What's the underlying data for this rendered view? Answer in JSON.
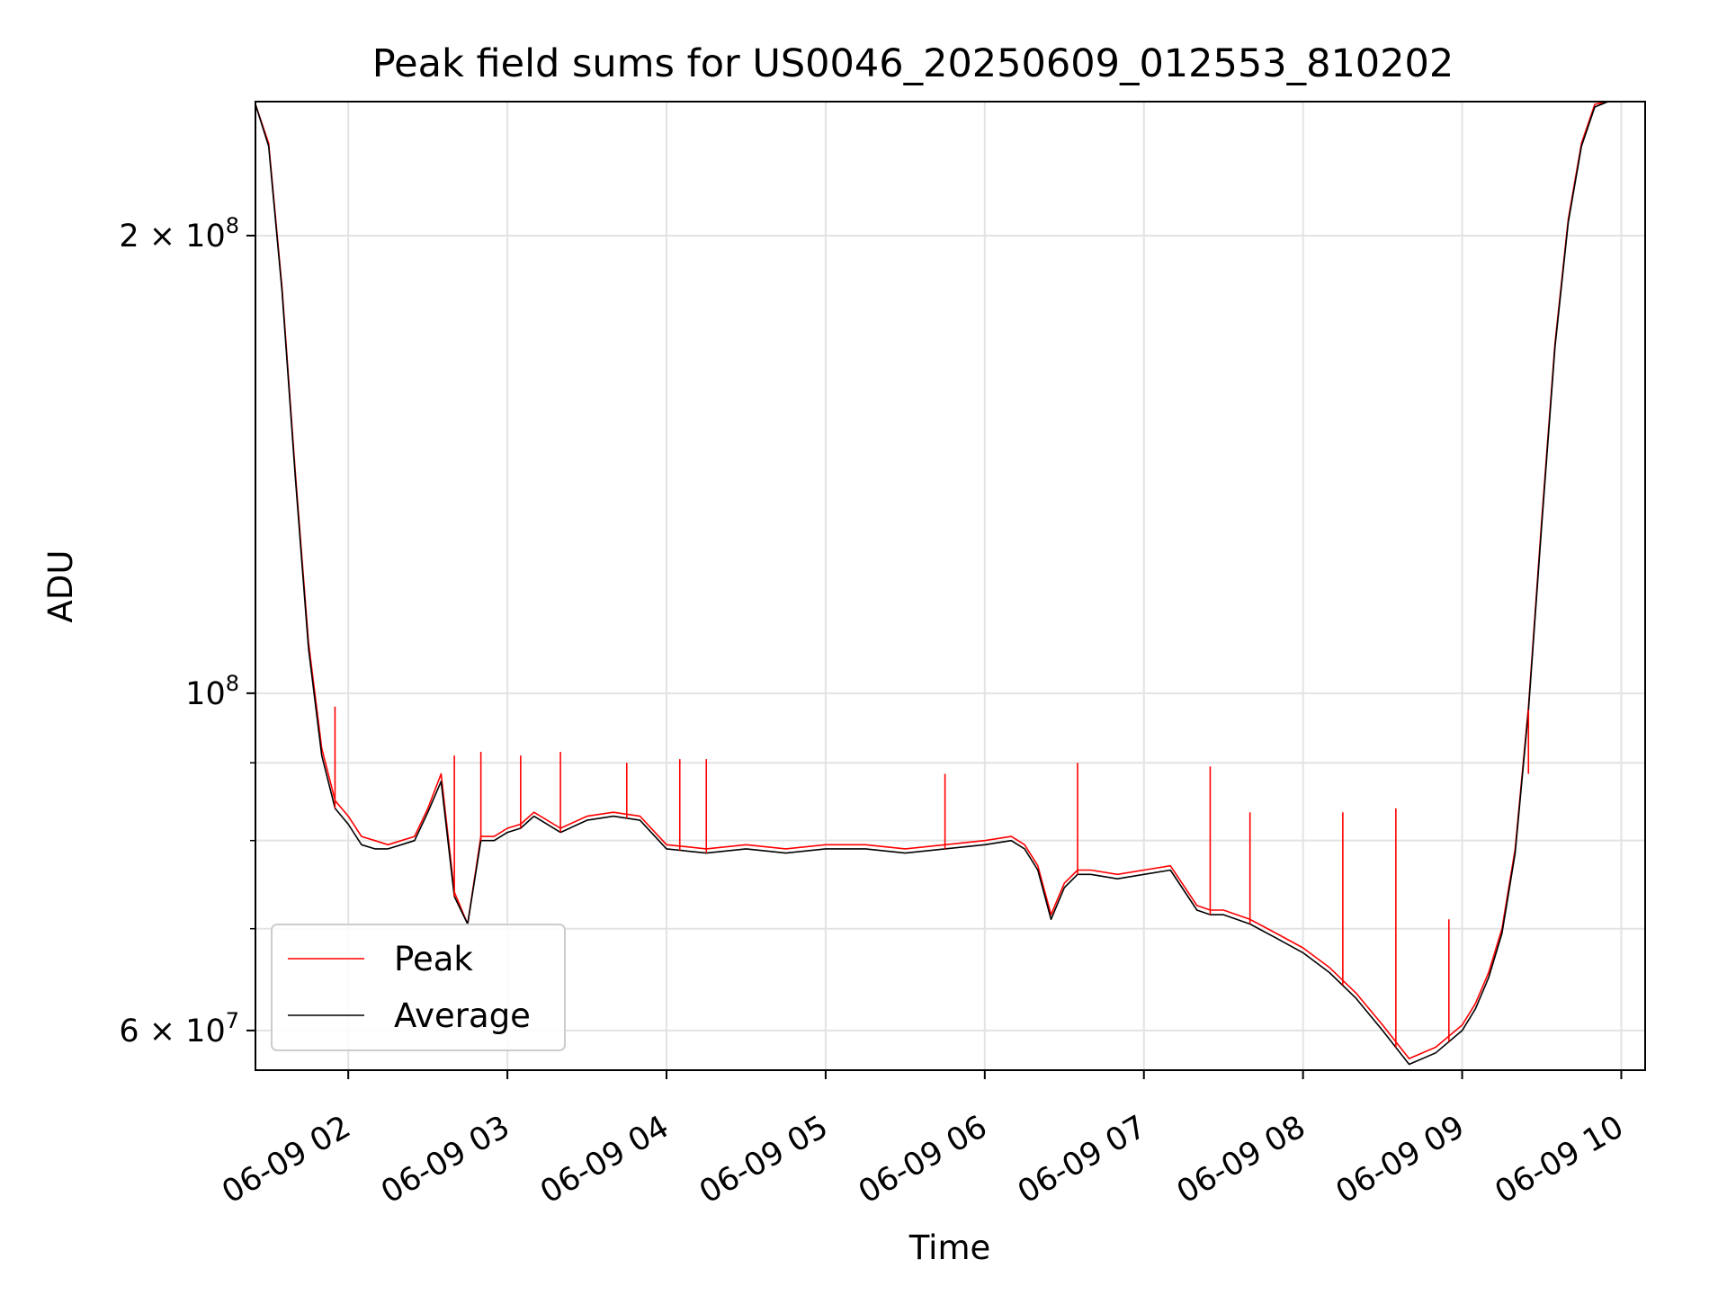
{
  "chart_data": {
    "type": "line",
    "title": "Peak field sums for US0046_20250609_012553_810202",
    "xlabel": "Time",
    "ylabel": "ADU",
    "yscale": "log",
    "ylim": [
      56500000,
      245000000
    ],
    "xlim": [
      "06-09 01:25",
      "06-09 10:09"
    ],
    "grid": true,
    "legend_position": "lower-left",
    "x_ticks": [
      "06-09 02",
      "06-09 03",
      "06-09 04",
      "06-09 05",
      "06-09 06",
      "06-09 07",
      "06-09 08",
      "06-09 09",
      "06-09 10"
    ],
    "y_ticks": [
      {
        "label": "2 × 10⁸",
        "mantissa": "2 × 10",
        "exponent": "8",
        "value": 200000000
      },
      {
        "label": "10⁸",
        "mantissa": "10",
        "exponent": "8",
        "value": 100000000
      },
      {
        "label": "6 × 10⁷",
        "mantissa": "6 × 10",
        "exponent": "7",
        "value": 60000000
      }
    ],
    "y_minor_ticks": [
      70000000,
      80000000,
      90000000
    ],
    "x": [
      "06-09 01:25",
      "06-09 01:30",
      "06-09 01:35",
      "06-09 01:40",
      "06-09 01:45",
      "06-09 01:50",
      "06-09 01:55",
      "06-09 02:00",
      "06-09 02:05",
      "06-09 02:10",
      "06-09 02:15",
      "06-09 02:20",
      "06-09 02:25",
      "06-09 02:30",
      "06-09 02:35",
      "06-09 02:40",
      "06-09 02:45",
      "06-09 02:50",
      "06-09 02:55",
      "06-09 03:00",
      "06-09 03:05",
      "06-09 03:10",
      "06-09 03:20",
      "06-09 03:30",
      "06-09 03:40",
      "06-09 03:50",
      "06-09 04:00",
      "06-09 04:15",
      "06-09 04:30",
      "06-09 04:45",
      "06-09 05:00",
      "06-09 05:15",
      "06-09 05:30",
      "06-09 05:45",
      "06-09 06:00",
      "06-09 06:10",
      "06-09 06:15",
      "06-09 06:20",
      "06-09 06:25",
      "06-09 06:30",
      "06-09 06:35",
      "06-09 06:40",
      "06-09 06:50",
      "06-09 07:00",
      "06-09 07:10",
      "06-09 07:20",
      "06-09 07:25",
      "06-09 07:30",
      "06-09 07:40",
      "06-09 07:50",
      "06-09 08:00",
      "06-09 08:10",
      "06-09 08:20",
      "06-09 08:30",
      "06-09 08:40",
      "06-09 08:50",
      "06-09 09:00",
      "06-09 09:05",
      "06-09 09:10",
      "06-09 09:15",
      "06-09 09:20",
      "06-09 09:25",
      "06-09 09:30",
      "06-09 09:35",
      "06-09 09:40",
      "06-09 09:45",
      "06-09 09:50",
      "06-09 09:55",
      "06-09 10:00",
      "06-09 10:05",
      "06-09 10:09"
    ],
    "series": [
      {
        "name": "Peak",
        "color": "#ff0000",
        "values": [
          244000000,
          230000000,
          185000000,
          140000000,
          108000000,
          92000000,
          85000000,
          83000000,
          80500000,
          80000000,
          79500000,
          80000000,
          80500000,
          84000000,
          88500000,
          74000000,
          70500000,
          80500000,
          80500000,
          81500000,
          82000000,
          83500000,
          81500000,
          83000000,
          83500000,
          83000000,
          79500000,
          79000000,
          79500000,
          79000000,
          79500000,
          79500000,
          79000000,
          79500000,
          80000000,
          80500000,
          79500000,
          77000000,
          71500000,
          75000000,
          76500000,
          76500000,
          76000000,
          76500000,
          77000000,
          72500000,
          72000000,
          72000000,
          71000000,
          69500000,
          68000000,
          66000000,
          63500000,
          60500000,
          57500000,
          58500000,
          60500000,
          62500000,
          65500000,
          70000000,
          79000000,
          98000000,
          130000000,
          170000000,
          205000000,
          230000000,
          244000000,
          245000000,
          245000000,
          245000000,
          245000000
        ]
      },
      {
        "name": "Average",
        "color": "#000000",
        "values": [
          244000000,
          229000000,
          184000000,
          139000000,
          107000000,
          91000000,
          84000000,
          82000000,
          79500000,
          79000000,
          79000000,
          79500000,
          80000000,
          83500000,
          87500000,
          73500000,
          70500000,
          80000000,
          80000000,
          81000000,
          81500000,
          83000000,
          81000000,
          82500000,
          83000000,
          82500000,
          79000000,
          78500000,
          79000000,
          78500000,
          79000000,
          79000000,
          78500000,
          79000000,
          79500000,
          80000000,
          79000000,
          76500000,
          71000000,
          74500000,
          76000000,
          76000000,
          75500000,
          76000000,
          76500000,
          72000000,
          71500000,
          71500000,
          70500000,
          69000000,
          67500000,
          65500000,
          63000000,
          60000000,
          57000000,
          58000000,
          60000000,
          62000000,
          65000000,
          69500000,
          78500000,
          97500000,
          129000000,
          169000000,
          204000000,
          229000000,
          243000000,
          245000000,
          245000000,
          245000000,
          245000000
        ]
      }
    ],
    "peak_spikes": [
      {
        "x": "06-09 01:55",
        "y": 98000000
      },
      {
        "x": "06-09 02:40",
        "y": 91000000
      },
      {
        "x": "06-09 02:50",
        "y": 91500000
      },
      {
        "x": "06-09 03:05",
        "y": 91000000
      },
      {
        "x": "06-09 03:20",
        "y": 91500000
      },
      {
        "x": "06-09 03:45",
        "y": 90000000
      },
      {
        "x": "06-09 04:05",
        "y": 90500000
      },
      {
        "x": "06-09 04:15",
        "y": 90500000
      },
      {
        "x": "06-09 05:45",
        "y": 88500000
      },
      {
        "x": "06-09 06:35",
        "y": 90000000
      },
      {
        "x": "06-09 07:25",
        "y": 89500000
      },
      {
        "x": "06-09 07:40",
        "y": 83500000
      },
      {
        "x": "06-09 08:15",
        "y": 83500000
      },
      {
        "x": "06-09 08:35",
        "y": 84000000
      },
      {
        "x": "06-09 08:55",
        "y": 71000000
      },
      {
        "x": "06-09 09:25",
        "y": 88500000
      }
    ]
  }
}
